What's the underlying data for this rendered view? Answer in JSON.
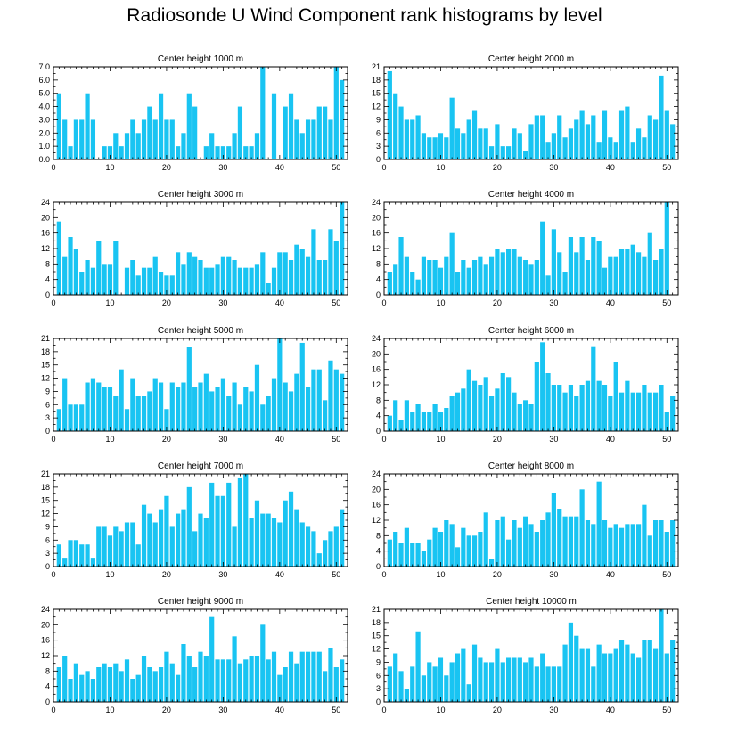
{
  "title": "Radiosonde U Wind Component rank histograms by level",
  "colors": {
    "bar": "#19C4F2",
    "axis": "#000000",
    "background": "#FFFFFF"
  },
  "chart_data": [
    {
      "type": "bar",
      "title": "Center height 1000 m",
      "x": [
        1,
        2,
        3,
        4,
        5,
        6,
        7,
        8,
        9,
        10,
        11,
        12,
        13,
        14,
        15,
        16,
        17,
        18,
        19,
        20,
        21,
        22,
        23,
        24,
        25,
        26,
        27,
        28,
        29,
        30,
        31,
        32,
        33,
        34,
        35,
        36,
        37,
        38,
        39,
        40,
        41,
        42,
        43,
        44,
        45,
        46,
        47,
        48,
        49,
        50,
        51
      ],
      "values": [
        5,
        3,
        1,
        3,
        3,
        5,
        3,
        0,
        1,
        1,
        2,
        1,
        2,
        3,
        2,
        3,
        4,
        3,
        5,
        3,
        3,
        1,
        2,
        5,
        4,
        0,
        1,
        2,
        1,
        1,
        1,
        2,
        4,
        1,
        1,
        2,
        7,
        0,
        5,
        0,
        4,
        5,
        3,
        2,
        3,
        3,
        4,
        4,
        3,
        7,
        6
      ],
      "ylim": [
        0,
        7
      ],
      "yticks": [
        0,
        1,
        2,
        3,
        4,
        5,
        6,
        7
      ],
      "ytick_labels": [
        "0.0",
        "1.0",
        "2.0",
        "3.0",
        "4.0",
        "5.0",
        "6.0",
        "7.0"
      ],
      "xlim": [
        0,
        52
      ],
      "xticks": [
        0,
        10,
        20,
        30,
        40,
        50
      ],
      "xtick_labels": [
        "0",
        "10",
        "20",
        "30",
        "40",
        "50"
      ]
    },
    {
      "type": "bar",
      "title": "Center height 2000 m",
      "x": [
        1,
        2,
        3,
        4,
        5,
        6,
        7,
        8,
        9,
        10,
        11,
        12,
        13,
        14,
        15,
        16,
        17,
        18,
        19,
        20,
        21,
        22,
        23,
        24,
        25,
        26,
        27,
        28,
        29,
        30,
        31,
        32,
        33,
        34,
        35,
        36,
        37,
        38,
        39,
        40,
        41,
        42,
        43,
        44,
        45,
        46,
        47,
        48,
        49,
        50,
        51
      ],
      "values": [
        20,
        15,
        12,
        9,
        9,
        10,
        6,
        5,
        5,
        6,
        5,
        14,
        7,
        6,
        9,
        11,
        7,
        7,
        3,
        8,
        3,
        3,
        7,
        6,
        2,
        8,
        10,
        10,
        4,
        6,
        10,
        5,
        7,
        9,
        11,
        8,
        10,
        4,
        11,
        5,
        4,
        11,
        12,
        4,
        7,
        5,
        10,
        9,
        19,
        11,
        8
      ],
      "ylim": [
        0,
        21
      ],
      "yticks": [
        0,
        3,
        6,
        9,
        12,
        15,
        18,
        21
      ],
      "ytick_labels": [
        "0",
        "3",
        "6",
        "9",
        "12",
        "15",
        "18",
        "21"
      ],
      "xlim": [
        0,
        52
      ],
      "xticks": [
        0,
        10,
        20,
        30,
        40,
        50
      ],
      "xtick_labels": [
        "0",
        "10",
        "20",
        "30",
        "40",
        "50"
      ]
    },
    {
      "type": "bar",
      "title": "Center height 3000 m",
      "x": [
        1,
        2,
        3,
        4,
        5,
        6,
        7,
        8,
        9,
        10,
        11,
        12,
        13,
        14,
        15,
        16,
        17,
        18,
        19,
        20,
        21,
        22,
        23,
        24,
        25,
        26,
        27,
        28,
        29,
        30,
        31,
        32,
        33,
        34,
        35,
        36,
        37,
        38,
        39,
        40,
        41,
        42,
        43,
        44,
        45,
        46,
        47,
        48,
        49,
        50,
        51
      ],
      "values": [
        19,
        10,
        15,
        12,
        6,
        9,
        7,
        14,
        8,
        8,
        14,
        0,
        7,
        9,
        5,
        7,
        7,
        10,
        6,
        5,
        5,
        11,
        8,
        11,
        10,
        9,
        7,
        7,
        8,
        10,
        10,
        9,
        7,
        7,
        7,
        8,
        11,
        3,
        7,
        11,
        11,
        9,
        13,
        12,
        10,
        17,
        9,
        9,
        17,
        14,
        24
      ],
      "ylim": [
        0,
        24
      ],
      "yticks": [
        0,
        4,
        8,
        12,
        16,
        20,
        24
      ],
      "ytick_labels": [
        "0",
        "4",
        "8",
        "12",
        "16",
        "20",
        "24"
      ],
      "xlim": [
        0,
        52
      ],
      "xticks": [
        0,
        10,
        20,
        30,
        40,
        50
      ],
      "xtick_labels": [
        "0",
        "10",
        "20",
        "30",
        "40",
        "50"
      ]
    },
    {
      "type": "bar",
      "title": "Center height 4000 m",
      "x": [
        1,
        2,
        3,
        4,
        5,
        6,
        7,
        8,
        9,
        10,
        11,
        12,
        13,
        14,
        15,
        16,
        17,
        18,
        19,
        20,
        21,
        22,
        23,
        24,
        25,
        26,
        27,
        28,
        29,
        30,
        31,
        32,
        33,
        34,
        35,
        36,
        37,
        38,
        39,
        40,
        41,
        42,
        43,
        44,
        45,
        46,
        47,
        48,
        49,
        50,
        51
      ],
      "values": [
        6,
        8,
        15,
        10,
        6,
        4,
        10,
        9,
        9,
        7,
        10,
        16,
        6,
        9,
        7,
        9,
        10,
        8,
        10,
        12,
        11,
        12,
        12,
        10,
        9,
        8,
        9,
        19,
        5,
        17,
        11,
        6,
        15,
        11,
        15,
        9,
        15,
        14,
        7,
        10,
        10,
        12,
        12,
        13,
        11,
        10,
        16,
        9,
        12,
        24,
        0
      ],
      "ylim": [
        0,
        24
      ],
      "yticks": [
        0,
        4,
        8,
        12,
        16,
        20,
        24
      ],
      "ytick_labels": [
        "0",
        "4",
        "8",
        "12",
        "16",
        "20",
        "24"
      ],
      "xlim": [
        0,
        52
      ],
      "xticks": [
        0,
        10,
        20,
        30,
        40,
        50
      ],
      "xtick_labels": [
        "0",
        "10",
        "20",
        "30",
        "40",
        "50"
      ]
    },
    {
      "type": "bar",
      "title": "Center height 5000 m",
      "x": [
        1,
        2,
        3,
        4,
        5,
        6,
        7,
        8,
        9,
        10,
        11,
        12,
        13,
        14,
        15,
        16,
        17,
        18,
        19,
        20,
        21,
        22,
        23,
        24,
        25,
        26,
        27,
        28,
        29,
        30,
        31,
        32,
        33,
        34,
        35,
        36,
        37,
        38,
        39,
        40,
        41,
        42,
        43,
        44,
        45,
        46,
        47,
        48,
        49,
        50,
        51
      ],
      "values": [
        5,
        12,
        6,
        6,
        6,
        11,
        12,
        11,
        10,
        10,
        8,
        14,
        5,
        12,
        8,
        8,
        9,
        12,
        11,
        5,
        11,
        10,
        11,
        19,
        10,
        11,
        13,
        9,
        10,
        12,
        8,
        11,
        6,
        10,
        9,
        15,
        6,
        8,
        12,
        21,
        11,
        9,
        13,
        20,
        10,
        14,
        14,
        7,
        16,
        14,
        13
      ],
      "ylim": [
        0,
        21
      ],
      "yticks": [
        0,
        3,
        6,
        9,
        12,
        15,
        18,
        21
      ],
      "ytick_labels": [
        "0",
        "3",
        "6",
        "9",
        "12",
        "15",
        "18",
        "21"
      ],
      "xlim": [
        0,
        52
      ],
      "xticks": [
        0,
        10,
        20,
        30,
        40,
        50
      ],
      "xtick_labels": [
        "0",
        "10",
        "20",
        "30",
        "40",
        "50"
      ]
    },
    {
      "type": "bar",
      "title": "Center height 6000 m",
      "x": [
        1,
        2,
        3,
        4,
        5,
        6,
        7,
        8,
        9,
        10,
        11,
        12,
        13,
        14,
        15,
        16,
        17,
        18,
        19,
        20,
        21,
        22,
        23,
        24,
        25,
        26,
        27,
        28,
        29,
        30,
        31,
        32,
        33,
        34,
        35,
        36,
        37,
        38,
        39,
        40,
        41,
        42,
        43,
        44,
        45,
        46,
        47,
        48,
        49,
        50,
        51
      ],
      "values": [
        4,
        8,
        3,
        8,
        5,
        7,
        5,
        5,
        7,
        5,
        6,
        9,
        10,
        11,
        16,
        13,
        12,
        14,
        9,
        11,
        15,
        14,
        10,
        7,
        8,
        7,
        18,
        23,
        15,
        12,
        12,
        10,
        12,
        9,
        12,
        13,
        22,
        13,
        12,
        9,
        18,
        10,
        13,
        10,
        10,
        12,
        10,
        10,
        12,
        5,
        9
      ],
      "ylim": [
        0,
        24
      ],
      "yticks": [
        0,
        4,
        8,
        12,
        16,
        20,
        24
      ],
      "ytick_labels": [
        "0",
        "4",
        "8",
        "12",
        "16",
        "20",
        "24"
      ],
      "xlim": [
        0,
        52
      ],
      "xticks": [
        0,
        10,
        20,
        30,
        40,
        50
      ],
      "xtick_labels": [
        "0",
        "10",
        "20",
        "30",
        "40",
        "50"
      ]
    },
    {
      "type": "bar",
      "title": "Center height 7000 m",
      "x": [
        1,
        2,
        3,
        4,
        5,
        6,
        7,
        8,
        9,
        10,
        11,
        12,
        13,
        14,
        15,
        16,
        17,
        18,
        19,
        20,
        21,
        22,
        23,
        24,
        25,
        26,
        27,
        28,
        29,
        30,
        31,
        32,
        33,
        34,
        35,
        36,
        37,
        38,
        39,
        40,
        41,
        42,
        43,
        44,
        45,
        46,
        47,
        48,
        49,
        50,
        51
      ],
      "values": [
        5,
        2,
        6,
        6,
        5,
        5,
        2,
        9,
        9,
        7,
        9,
        8,
        10,
        10,
        5,
        14,
        12,
        10,
        13,
        16,
        9,
        12,
        13,
        18,
        8,
        12,
        11,
        19,
        16,
        16,
        19,
        9,
        20,
        21,
        11,
        15,
        12,
        12,
        11,
        10,
        15,
        17,
        13,
        10,
        9,
        8,
        3,
        6,
        8,
        9,
        13
      ],
      "ylim": [
        0,
        21
      ],
      "yticks": [
        0,
        3,
        6,
        9,
        12,
        15,
        18,
        21
      ],
      "ytick_labels": [
        "0",
        "3",
        "6",
        "9",
        "12",
        "15",
        "18",
        "21"
      ],
      "xlim": [
        0,
        52
      ],
      "xticks": [
        0,
        10,
        20,
        30,
        40,
        50
      ],
      "xtick_labels": [
        "0",
        "10",
        "20",
        "30",
        "40",
        "50"
      ]
    },
    {
      "type": "bar",
      "title": "Center height 8000 m",
      "x": [
        1,
        2,
        3,
        4,
        5,
        6,
        7,
        8,
        9,
        10,
        11,
        12,
        13,
        14,
        15,
        16,
        17,
        18,
        19,
        20,
        21,
        22,
        23,
        24,
        25,
        26,
        27,
        28,
        29,
        30,
        31,
        32,
        33,
        34,
        35,
        36,
        37,
        38,
        39,
        40,
        41,
        42,
        43,
        44,
        45,
        46,
        47,
        48,
        49,
        50,
        51
      ],
      "values": [
        7,
        9,
        6,
        10,
        6,
        6,
        4,
        7,
        10,
        9,
        12,
        11,
        5,
        10,
        8,
        8,
        9,
        14,
        2,
        12,
        13,
        7,
        12,
        10,
        13,
        11,
        9,
        12,
        14,
        19,
        15,
        13,
        13,
        13,
        20,
        12,
        11,
        22,
        12,
        10,
        11,
        10,
        11,
        11,
        11,
        16,
        8,
        12,
        12,
        9,
        12
      ],
      "ylim": [
        0,
        24
      ],
      "yticks": [
        0,
        4,
        8,
        12,
        16,
        20,
        24
      ],
      "ytick_labels": [
        "0",
        "4",
        "8",
        "12",
        "16",
        "20",
        "24"
      ],
      "xlim": [
        0,
        52
      ],
      "xticks": [
        0,
        10,
        20,
        30,
        40,
        50
      ],
      "xtick_labels": [
        "0",
        "10",
        "20",
        "30",
        "40",
        "50"
      ]
    },
    {
      "type": "bar",
      "title": "Center height 9000 m",
      "x": [
        1,
        2,
        3,
        4,
        5,
        6,
        7,
        8,
        9,
        10,
        11,
        12,
        13,
        14,
        15,
        16,
        17,
        18,
        19,
        20,
        21,
        22,
        23,
        24,
        25,
        26,
        27,
        28,
        29,
        30,
        31,
        32,
        33,
        34,
        35,
        36,
        37,
        38,
        39,
        40,
        41,
        42,
        43,
        44,
        45,
        46,
        47,
        48,
        49,
        50,
        51
      ],
      "values": [
        9,
        12,
        6,
        10,
        7,
        8,
        6,
        9,
        10,
        9,
        10,
        8,
        11,
        6,
        7,
        12,
        9,
        8,
        9,
        13,
        10,
        7,
        15,
        12,
        9,
        13,
        12,
        22,
        11,
        11,
        11,
        17,
        10,
        11,
        12,
        12,
        20,
        11,
        13,
        7,
        9,
        13,
        10,
        13,
        13,
        13,
        13,
        8,
        14,
        9,
        11
      ],
      "ylim": [
        0,
        24
      ],
      "yticks": [
        0,
        4,
        8,
        12,
        16,
        20,
        24
      ],
      "ytick_labels": [
        "0",
        "4",
        "8",
        "12",
        "16",
        "20",
        "24"
      ],
      "xlim": [
        0,
        52
      ],
      "xticks": [
        0,
        10,
        20,
        30,
        40,
        50
      ],
      "xtick_labels": [
        "0",
        "10",
        "20",
        "30",
        "40",
        "50"
      ]
    },
    {
      "type": "bar",
      "title": "Center height 10000 m",
      "x": [
        1,
        2,
        3,
        4,
        5,
        6,
        7,
        8,
        9,
        10,
        11,
        12,
        13,
        14,
        15,
        16,
        17,
        18,
        19,
        20,
        21,
        22,
        23,
        24,
        25,
        26,
        27,
        28,
        29,
        30,
        31,
        32,
        33,
        34,
        35,
        36,
        37,
        38,
        39,
        40,
        41,
        42,
        43,
        44,
        45,
        46,
        47,
        48,
        49,
        50,
        51
      ],
      "values": [
        8,
        11,
        7,
        3,
        8,
        16,
        6,
        9,
        8,
        10,
        6,
        9,
        11,
        12,
        4,
        13,
        10,
        9,
        9,
        12,
        9,
        10,
        10,
        10,
        9,
        10,
        8,
        11,
        8,
        8,
        8,
        13,
        18,
        15,
        12,
        12,
        8,
        13,
        11,
        11,
        12,
        14,
        13,
        11,
        10,
        14,
        14,
        12,
        21,
        11,
        14
      ],
      "ylim": [
        0,
        21
      ],
      "yticks": [
        0,
        3,
        6,
        9,
        12,
        15,
        18,
        21
      ],
      "ytick_labels": [
        "0",
        "3",
        "6",
        "9",
        "12",
        "15",
        "18",
        "21"
      ],
      "xlim": [
        0,
        52
      ],
      "xticks": [
        0,
        10,
        20,
        30,
        40,
        50
      ],
      "xtick_labels": [
        "0",
        "10",
        "20",
        "30",
        "40",
        "50"
      ]
    }
  ]
}
